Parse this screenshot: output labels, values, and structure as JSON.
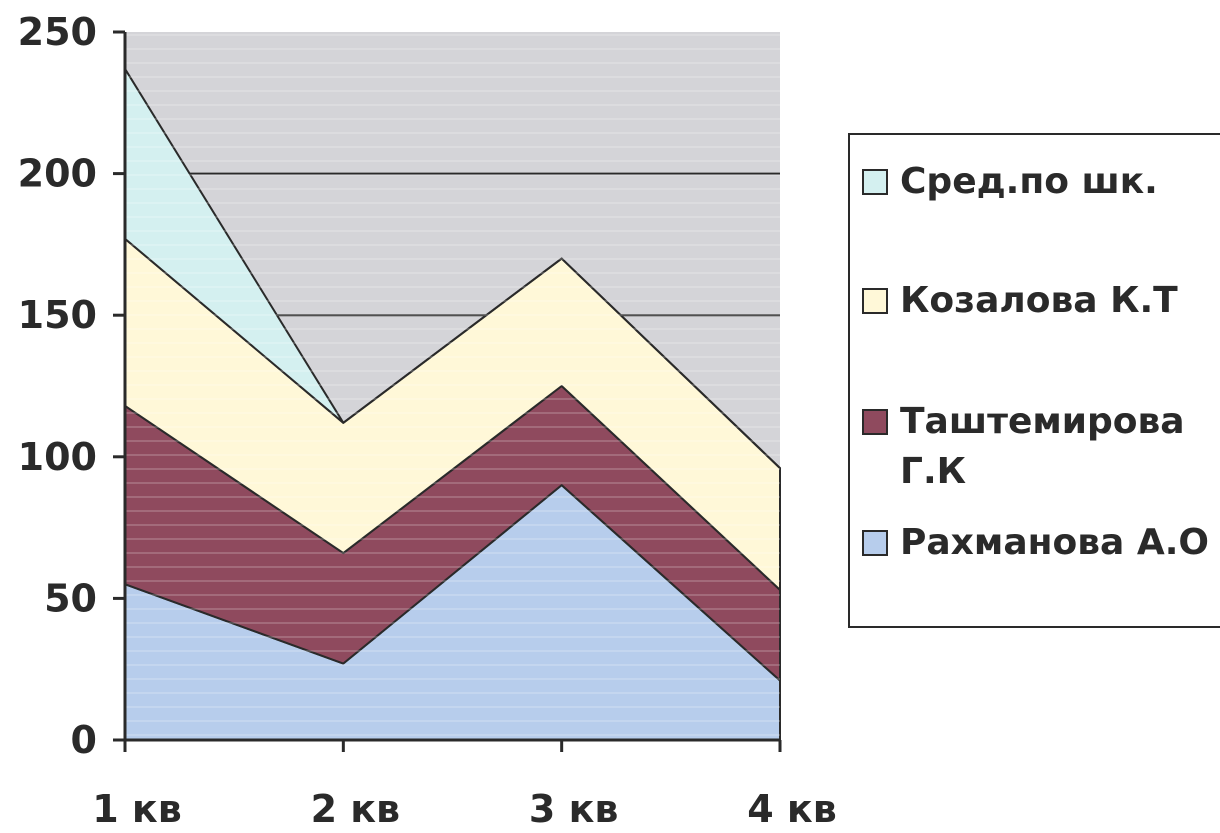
{
  "chart_data": {
    "type": "area",
    "stacked": true,
    "categories": [
      "1 кв",
      "2 кв",
      "3 кв",
      "4 кв"
    ],
    "series": [
      {
        "name": "Рахманова А.О",
        "values": [
          55,
          27,
          90,
          21
        ],
        "color": "#b7cdec"
      },
      {
        "name": "Таштемирова Г.К",
        "values": [
          63,
          39,
          35,
          32
        ],
        "color": "#8f4a5e"
      },
      {
        "name": "Козалова К.Т",
        "values": [
          59,
          46,
          45,
          43
        ],
        "color": "#fff8d8"
      },
      {
        "name": "Сред.по шк.",
        "values": [
          60,
          0,
          0,
          0
        ],
        "color": "#d4f0f0"
      }
    ],
    "yticks": [
      "0",
      "50",
      "100",
      "150",
      "200",
      "250"
    ],
    "ylim": [
      0,
      250
    ],
    "legend_position": "right",
    "gridlines": [
      150,
      200
    ],
    "plot_background": "#d4d4d8",
    "line_color": "#2a2a2a"
  }
}
